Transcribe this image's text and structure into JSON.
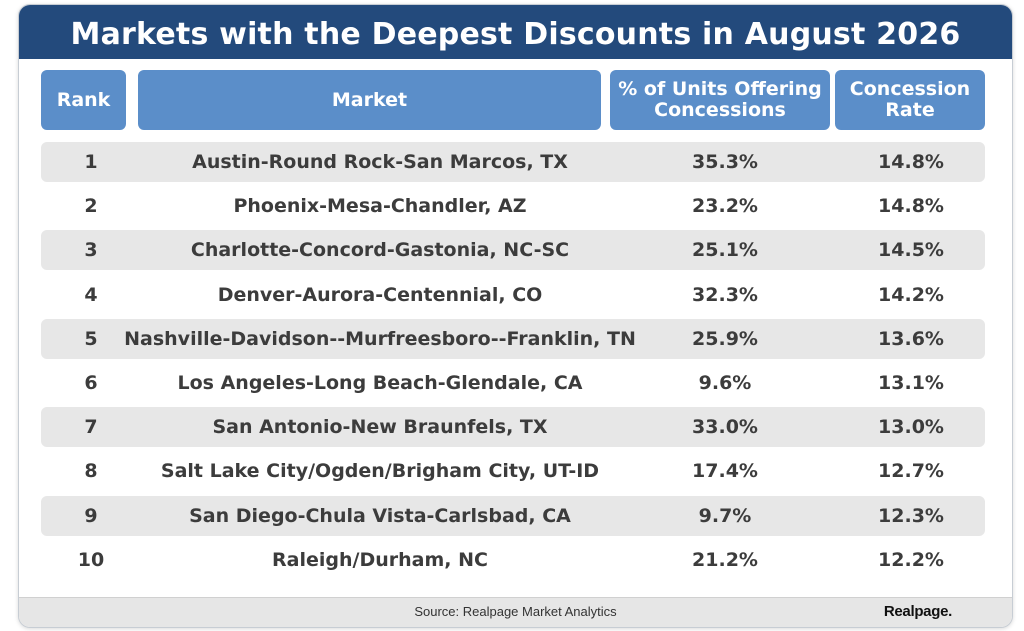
{
  "title": "Markets with the Deepest Discounts in August 2026",
  "footer": {
    "source": "Source:  Realpage Market Analytics",
    "logo": "Realpage."
  },
  "colors": {
    "title_bg": "#234a7c",
    "header_bg": "#5b8ec9",
    "row_shade": "#e7e7e7",
    "footer_bg": "#e6e6e6"
  },
  "chart_data": {
    "type": "table",
    "columns": [
      "Rank",
      "Market",
      "% of Units Offering Concessions",
      "Concession Rate"
    ],
    "rows": [
      {
        "rank": "1",
        "market": "Austin-Round Rock-San Marcos, TX",
        "pct_units": "35.3%",
        "rate": "14.8%"
      },
      {
        "rank": "2",
        "market": "Phoenix-Mesa-Chandler, AZ",
        "pct_units": "23.2%",
        "rate": "14.8%"
      },
      {
        "rank": "3",
        "market": "Charlotte-Concord-Gastonia, NC-SC",
        "pct_units": "25.1%",
        "rate": "14.5%"
      },
      {
        "rank": "4",
        "market": "Denver-Aurora-Centennial, CO",
        "pct_units": "32.3%",
        "rate": "14.2%"
      },
      {
        "rank": "5",
        "market": "Nashville-Davidson--Murfreesboro--Franklin, TN",
        "pct_units": "25.9%",
        "rate": "13.6%"
      },
      {
        "rank": "6",
        "market": "Los Angeles-Long Beach-Glendale, CA",
        "pct_units": "9.6%",
        "rate": "13.1%"
      },
      {
        "rank": "7",
        "market": "San Antonio-New Braunfels, TX",
        "pct_units": "33.0%",
        "rate": "13.0%"
      },
      {
        "rank": "8",
        "market": "Salt Lake City/Ogden/Brigham City, UT-ID",
        "pct_units": "17.4%",
        "rate": "12.7%"
      },
      {
        "rank": "9",
        "market": "San Diego-Chula Vista-Carlsbad, CA",
        "pct_units": "9.7%",
        "rate": "12.3%"
      },
      {
        "rank": "10",
        "market": "Raleigh/Durham, NC",
        "pct_units": "21.2%",
        "rate": "12.2%"
      }
    ]
  }
}
